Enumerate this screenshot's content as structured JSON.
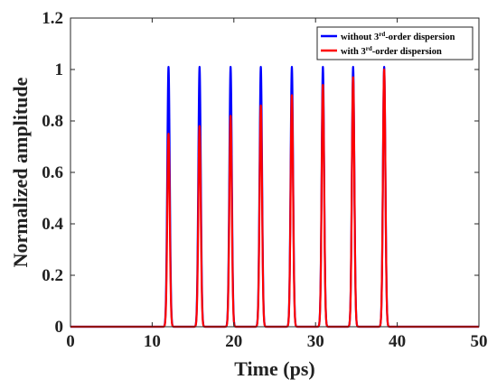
{
  "chart_data": {
    "type": "line",
    "title": "",
    "xlabel": "Time (ps)",
    "ylabel": "Normalized amplitude",
    "xlim": [
      0,
      50
    ],
    "ylim": [
      0,
      1.2
    ],
    "xticks": [
      0,
      10,
      20,
      30,
      40,
      50
    ],
    "yticks": [
      0,
      0.2,
      0.4,
      0.6,
      0.8,
      1,
      1.2
    ],
    "grid": false,
    "legend_position": "top-right",
    "pulse_centers": [
      12.0,
      15.8,
      19.6,
      23.3,
      27.1,
      30.9,
      34.6,
      38.4
    ],
    "pulse_width_ps": 0.15,
    "series": [
      {
        "name": "without 3rd-order dispersion",
        "legend_parts": [
          "without 3",
          "rd",
          "-order dispersion"
        ],
        "color": "#0000ff",
        "peaks": [
          1.01,
          1.01,
          1.01,
          1.01,
          1.01,
          1.01,
          1.01,
          1.01
        ]
      },
      {
        "name": "with 3rd-order dispersion",
        "legend_parts": [
          "with 3",
          "rd",
          "-order dispersion"
        ],
        "color": "#ff0000",
        "peaks": [
          0.75,
          0.78,
          0.82,
          0.86,
          0.9,
          0.94,
          0.97,
          1.0
        ]
      }
    ]
  }
}
